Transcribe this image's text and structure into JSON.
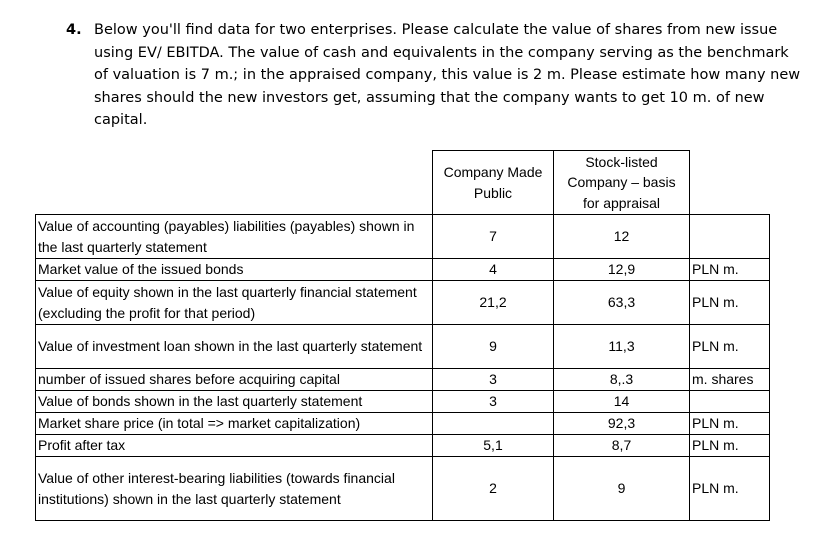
{
  "task": {
    "number": "4.",
    "text": "Below you'll find data for two enterprises. Please calculate the value of shares from new issue using EV/ EBITDA. The value of cash and equivalents in the company serving as the benchmark of valuation is 7 m.; in the appraised company, this value is 2 m. Please estimate how many new shares should the new investors get, assuming that the company wants to get 10 m. of new capital."
  },
  "table": {
    "headers": {
      "col1": "Company Made Public",
      "col2": "Stock-listed Company – basis for appraisal"
    },
    "rows": [
      {
        "label": "Value of accounting (payables) liabilities (payables) shown in the last quarterly statement",
        "v1": "7",
        "v2": "12",
        "unit": ""
      },
      {
        "label": "Market value of the issued bonds",
        "v1": "4",
        "v2": "12,9",
        "unit": "PLN m."
      },
      {
        "label": "Value of equity shown in the last quarterly financial statement (excluding the profit for that period)",
        "v1": "21,2",
        "v2": "63,3",
        "unit": "PLN m."
      },
      {
        "label": "Value of investment loan shown in the last quarterly statement",
        "v1": "9",
        "v2": "11,3",
        "unit": "PLN m."
      },
      {
        "label": "number of issued shares before acquiring capital",
        "v1": "3",
        "v2": "8,.3",
        "unit": "m. shares"
      },
      {
        "label": "Value of bonds shown in the last quarterly statement",
        "v1": "3",
        "v2": "14",
        "unit": ""
      },
      {
        "label": "Market share price (in total => market capitalization)",
        "v1": "",
        "v2": "92,3",
        "unit": "PLN m."
      },
      {
        "label": "Profit after tax",
        "v1": "5,1",
        "v2": "8,7",
        "unit": "PLN m."
      },
      {
        "label": "Value of other interest-bearing liabilities (towards financial institutions) shown in the last quarterly statement",
        "v1": "2",
        "v2": "9",
        "unit": "PLN m."
      }
    ]
  }
}
